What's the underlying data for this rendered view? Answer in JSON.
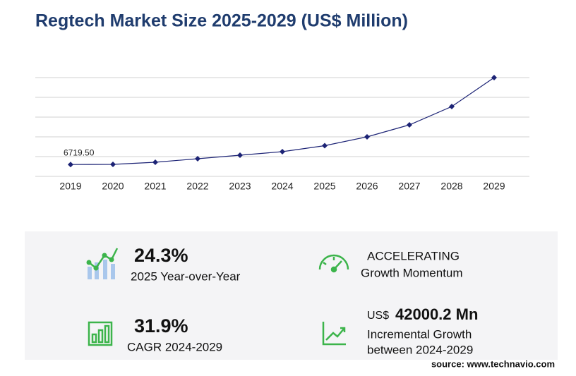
{
  "chart_data": {
    "type": "line",
    "title": "Regtech Market Size 2025-2029 (US$ Million)",
    "categories": [
      "2019",
      "2020",
      "2021",
      "2022",
      "2023",
      "2024",
      "2025",
      "2026",
      "2027",
      "2028",
      "2029"
    ],
    "values": [
      6719.5,
      6800,
      8000,
      10000,
      12000,
      14000,
      17400,
      22400,
      29200,
      39600,
      56000.2
    ],
    "value_labels": [
      "6719.50",
      null,
      null,
      null,
      null,
      null,
      null,
      null,
      null,
      null,
      null
    ],
    "color": "#1c2375",
    "ylim": [
      0,
      56000
    ],
    "yticks": [
      0,
      11200,
      22400,
      33600,
      44800,
      56000
    ],
    "grid": true
  },
  "stats": {
    "yoy": {
      "value": "24.3%",
      "label": "2025 Year-over-Year"
    },
    "momentum": {
      "value": "ACCELERATING",
      "label": "Growth Momentum"
    },
    "cagr": {
      "value": "31.9%",
      "label": "CAGR 2024-2029"
    },
    "incremental": {
      "currency": "US$",
      "value": "42000.2 Mn",
      "label1": "Incremental Growth",
      "label2": "between 2024-2029"
    }
  },
  "source": "source: www.technavio.com"
}
